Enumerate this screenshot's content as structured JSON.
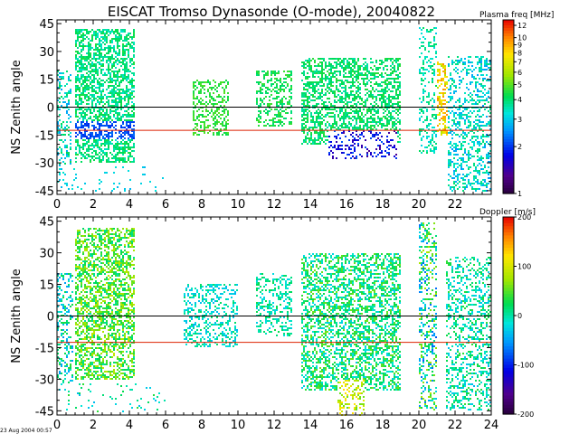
{
  "title": "EISCAT Tromso Dynasonde (O-mode),  20040822",
  "footer_timestamp": "23 Aug 2004 00:57",
  "chart_data": [
    {
      "type": "heatmap",
      "name": "plasma-frequency-panel",
      "ylabel": "NS Zenith angle",
      "xlim": [
        0,
        24
      ],
      "ylim": [
        -47,
        47
      ],
      "x_ticks": [
        0,
        2,
        4,
        6,
        8,
        10,
        12,
        14,
        16,
        18,
        20,
        22
      ],
      "x_tick_labels": [
        "0",
        "2",
        "4",
        "6",
        "8",
        "10",
        "12",
        "14",
        "16",
        "18",
        "20",
        "22"
      ],
      "y_ticks": [
        45,
        30,
        15,
        0,
        -15,
        -30,
        -45
      ],
      "y_tick_labels": [
        "45",
        "30",
        "15",
        "0",
        "-15",
        "-30",
        "-45"
      ],
      "reference_lines": [
        {
          "y": 0,
          "color": "#000000"
        },
        {
          "y": -12.5,
          "color": "#dd2200"
        }
      ],
      "colorbar": {
        "label": "Plasma freq [MHz]",
        "scale": "log",
        "range": [
          1,
          13
        ],
        "ticks": [
          1,
          2,
          3,
          4,
          5,
          6,
          7,
          8,
          9,
          10,
          12
        ],
        "tick_labels": [
          "1",
          "2",
          "3",
          "4",
          "5",
          "6",
          "7",
          "8",
          "9",
          "10",
          "12"
        ]
      },
      "seed": 17,
      "activity": [
        {
          "x": [
            0.0,
            0.8
          ],
          "y": [
            -45,
            20
          ],
          "v": [
            2.5,
            4.2
          ],
          "d": 0.3
        },
        {
          "x": [
            1.0,
            4.3
          ],
          "y": [
            -30,
            42
          ],
          "v": [
            3.3,
            4.5
          ],
          "d": 0.55
        },
        {
          "x": [
            1.0,
            4.3
          ],
          "y": [
            -17,
            -8
          ],
          "v": [
            1.9,
            2.3
          ],
          "d": 0.55
        },
        {
          "x": [
            0.0,
            6.0
          ],
          "y": [
            -46,
            -32
          ],
          "v": [
            2.8,
            3.4
          ],
          "d": 0.07
        },
        {
          "x": [
            7.5,
            9.5
          ],
          "y": [
            -15,
            15
          ],
          "v": [
            4.2,
            5.0
          ],
          "d": 0.4
        },
        {
          "x": [
            11.0,
            13.0
          ],
          "y": [
            -10,
            20
          ],
          "v": [
            3.8,
            4.8
          ],
          "d": 0.4
        },
        {
          "x": [
            13.5,
            19.0
          ],
          "y": [
            -20,
            27
          ],
          "v": [
            3.5,
            4.6
          ],
          "d": 0.5
        },
        {
          "x": [
            15.0,
            18.8
          ],
          "y": [
            -28,
            -12
          ],
          "v": [
            1.3,
            2.2
          ],
          "d": 0.28
        },
        {
          "x": [
            20.0,
            21.0
          ],
          "y": [
            -25,
            44
          ],
          "v": [
            3.0,
            4.2
          ],
          "d": 0.3
        },
        {
          "x": [
            21.0,
            21.7
          ],
          "y": [
            -15,
            25
          ],
          "v": [
            6.0,
            10.0
          ],
          "d": 0.5
        },
        {
          "x": [
            21.6,
            24.0
          ],
          "y": [
            -46,
            28
          ],
          "v": [
            2.5,
            4.0
          ],
          "d": 0.35
        }
      ]
    },
    {
      "type": "heatmap",
      "name": "doppler-panel",
      "ylabel": "NS Zenith angle",
      "xlim": [
        0,
        24
      ],
      "ylim": [
        -47,
        47
      ],
      "x_ticks": [
        0,
        2,
        4,
        6,
        8,
        10,
        12,
        14,
        16,
        18,
        20,
        22,
        24
      ],
      "x_tick_labels": [
        "0",
        "2",
        "4",
        "6",
        "8",
        "10",
        "12",
        "14",
        "16",
        "18",
        "20",
        "22",
        "24"
      ],
      "y_ticks": [
        45,
        30,
        15,
        0,
        -15,
        -30,
        -45
      ],
      "y_tick_labels": [
        "45",
        "30",
        "15",
        "0",
        "-15",
        "-30",
        "-45"
      ],
      "reference_lines": [
        {
          "y": 0,
          "color": "#000000"
        },
        {
          "y": -12.5,
          "color": "#dd2200"
        }
      ],
      "colorbar": {
        "label": "Doppler [m/s]",
        "scale": "linear",
        "range": [
          -200,
          200
        ],
        "ticks": [
          200,
          100,
          0,
          -100,
          -200
        ],
        "tick_labels": [
          "200",
          "100",
          "0",
          "-100",
          "-200"
        ]
      },
      "seed": 53,
      "activity": [
        {
          "x": [
            0.0,
            0.9
          ],
          "y": [
            -45,
            20
          ],
          "v": [
            -60,
            40
          ],
          "d": 0.3
        },
        {
          "x": [
            1.0,
            4.3
          ],
          "y": [
            -30,
            42
          ],
          "v": [
            0,
            90
          ],
          "d": 0.5
        },
        {
          "x": [
            0.0,
            6.0
          ],
          "y": [
            -46,
            -32
          ],
          "v": [
            -40,
            40
          ],
          "d": 0.06
        },
        {
          "x": [
            7.0,
            10.0
          ],
          "y": [
            -15,
            15
          ],
          "v": [
            -40,
            20
          ],
          "d": 0.35
        },
        {
          "x": [
            11.0,
            13.0
          ],
          "y": [
            -10,
            20
          ],
          "v": [
            -30,
            30
          ],
          "d": 0.35
        },
        {
          "x": [
            13.5,
            19.0
          ],
          "y": [
            -35,
            30
          ],
          "v": [
            -30,
            60
          ],
          "d": 0.5
        },
        {
          "x": [
            15.5,
            17.0
          ],
          "y": [
            -47,
            -30
          ],
          "v": [
            50,
            130
          ],
          "d": 0.35
        },
        {
          "x": [
            20.0,
            21.0
          ],
          "y": [
            -45,
            44
          ],
          "v": [
            -80,
            80
          ],
          "d": 0.35
        },
        {
          "x": [
            21.5,
            24.0
          ],
          "y": [
            -45,
            28
          ],
          "v": [
            -40,
            40
          ],
          "d": 0.35
        }
      ]
    }
  ]
}
